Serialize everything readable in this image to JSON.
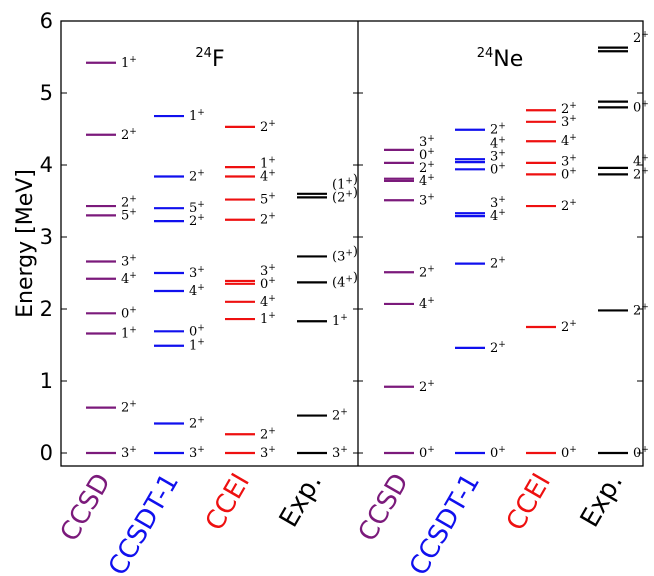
{
  "chart_data": {
    "type": "level-scheme",
    "ylabel": "Energy [MeV]",
    "ylim": [
      -0.2,
      6
    ],
    "yticks": [
      0,
      1,
      2,
      3,
      4,
      5,
      6
    ],
    "colors": {
      "CCSD": "#7b1a7b",
      "CCSDT-1": "#1010ee",
      "CCEI": "#ee1010",
      "Exp.": "#000000"
    },
    "panels": [
      {
        "nucleus": {
          "mass": "24",
          "symbol": "F"
        },
        "columns": [
          {
            "method": "CCSD",
            "levels": [
              {
                "E": 0.0,
                "label": "3+"
              },
              {
                "E": 0.63,
                "label": "2+"
              },
              {
                "E": 1.66,
                "label": "1+"
              },
              {
                "E": 1.94,
                "label": "0+"
              },
              {
                "E": 2.42,
                "label": "4+"
              },
              {
                "E": 2.66,
                "label": "3+"
              },
              {
                "E": 3.3,
                "label": "5+"
              },
              {
                "E": 3.43,
                "label": "2+"
              },
              {
                "E": 4.42,
                "label": "2+"
              },
              {
                "E": 5.42,
                "label": "1+"
              }
            ]
          },
          {
            "method": "CCSDT-1",
            "levels": [
              {
                "E": 0.0,
                "label": "3+"
              },
              {
                "E": 0.41,
                "label": "2+"
              },
              {
                "E": 1.49,
                "label": "1+"
              },
              {
                "E": 1.69,
                "label": "0+"
              },
              {
                "E": 2.25,
                "label": "4+"
              },
              {
                "E": 2.5,
                "label": "3+"
              },
              {
                "E": 3.22,
                "label": "2+"
              },
              {
                "E": 3.4,
                "label": "5+"
              },
              {
                "E": 3.84,
                "label": "2+"
              },
              {
                "E": 4.68,
                "label": "1+"
              }
            ]
          },
          {
            "method": "CCEI",
            "levels": [
              {
                "E": 0.0,
                "label": "3+"
              },
              {
                "E": 0.26,
                "label": "2+"
              },
              {
                "E": 1.86,
                "label": "1+"
              },
              {
                "E": 2.1,
                "label": "4+"
              },
              {
                "E": 2.35,
                "label": "0+"
              },
              {
                "E": 2.39,
                "label": "3+"
              },
              {
                "E": 3.24,
                "label": "2+"
              },
              {
                "E": 3.52,
                "label": "5+"
              },
              {
                "E": 3.84,
                "label": "4+"
              },
              {
                "E": 3.97,
                "label": "1+"
              },
              {
                "E": 4.53,
                "label": "2+"
              }
            ]
          },
          {
            "method": "Exp.",
            "levels": [
              {
                "E": 0.0,
                "label": "3+"
              },
              {
                "E": 0.52,
                "label": "2+"
              },
              {
                "E": 1.83,
                "label": "1+"
              },
              {
                "E": 2.37,
                "label": "(4+)"
              },
              {
                "E": 2.73,
                "label": "(3+)"
              },
              {
                "E": 3.55,
                "label": "(2+)"
              },
              {
                "E": 3.6,
                "label": "(1+)"
              }
            ]
          }
        ]
      },
      {
        "nucleus": {
          "mass": "24",
          "symbol": "Ne"
        },
        "columns": [
          {
            "method": "CCSD",
            "levels": [
              {
                "E": 0.0,
                "label": "0+"
              },
              {
                "E": 0.92,
                "label": "2+"
              },
              {
                "E": 2.07,
                "label": "4+"
              },
              {
                "E": 2.51,
                "label": "2+"
              },
              {
                "E": 3.51,
                "label": "3+"
              },
              {
                "E": 3.78,
                "label": "4+"
              },
              {
                "E": 3.81,
                "label": "2+"
              },
              {
                "E": 4.03,
                "label": "0+"
              },
              {
                "E": 4.21,
                "label": "3+"
              }
            ]
          },
          {
            "method": "CCSDT-1",
            "levels": [
              {
                "E": 0.0,
                "label": "0+"
              },
              {
                "E": 1.46,
                "label": "2+"
              },
              {
                "E": 2.63,
                "label": "2+"
              },
              {
                "E": 3.29,
                "label": "4+"
              },
              {
                "E": 3.33,
                "label": "3+"
              },
              {
                "E": 3.94,
                "label": "0+"
              },
              {
                "E": 4.04,
                "label": "3+"
              },
              {
                "E": 4.08,
                "label": "4+"
              },
              {
                "E": 4.49,
                "label": "2+"
              }
            ]
          },
          {
            "method": "CCEI",
            "levels": [
              {
                "E": 0.0,
                "label": "0+"
              },
              {
                "E": 1.75,
                "label": "2+"
              },
              {
                "E": 3.43,
                "label": "2+"
              },
              {
                "E": 3.87,
                "label": "0+"
              },
              {
                "E": 4.03,
                "label": "3+"
              },
              {
                "E": 4.33,
                "label": "4+"
              },
              {
                "E": 4.6,
                "label": "3+"
              },
              {
                "E": 4.76,
                "label": "2+"
              }
            ]
          },
          {
            "method": "Exp.",
            "levels": [
              {
                "E": 0.0,
                "label": "0+"
              },
              {
                "E": 1.98,
                "label": "2+"
              },
              {
                "E": 3.87,
                "label": "2+"
              },
              {
                "E": 3.96,
                "label": "4+"
              },
              {
                "E": 4.8,
                "label": "0+"
              },
              {
                "E": 4.88,
                "label": ""
              },
              {
                "E": 5.58,
                "label": ""
              },
              {
                "E": 5.63,
                "label": "2+"
              }
            ]
          }
        ]
      }
    ]
  }
}
